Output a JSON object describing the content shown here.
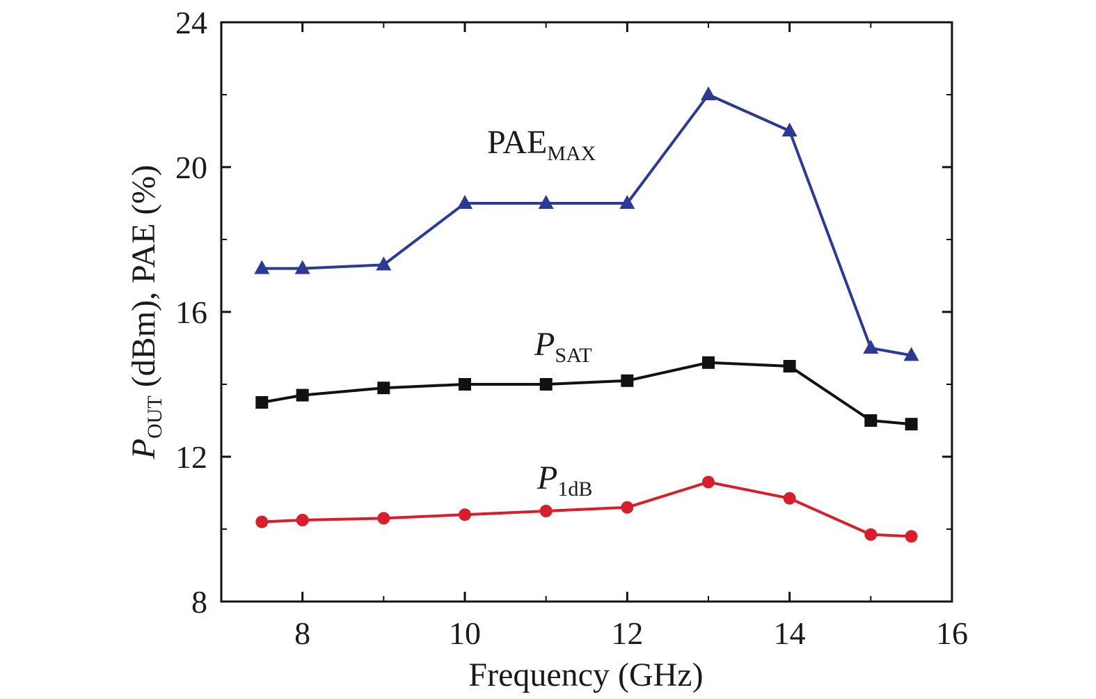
{
  "chart_data": {
    "type": "line",
    "xlabel": "Frequency (GHz)",
    "ylabel": {
      "main": "P",
      "sub": "OUT",
      "rest": " (dBm), PAE (%)"
    },
    "xlim": [
      7,
      16
    ],
    "ylim": [
      8,
      24
    ],
    "xticks": [
      "8",
      "10",
      "12",
      "14",
      "16"
    ],
    "yticks": [
      "8",
      "12",
      "16",
      "20",
      "24"
    ],
    "grid": false,
    "legend": "none",
    "series": [
      {
        "label": {
          "main": "PAE",
          "sub": "MAX",
          "italic": false
        },
        "color": "#2b3a94",
        "marker": "triangle",
        "x": [
          7.5,
          8,
          9,
          10,
          11,
          12,
          13,
          14,
          15,
          15.5
        ],
        "y": [
          17.2,
          17.2,
          17.3,
          19.0,
          19.0,
          19.0,
          22.0,
          21.0,
          15.0,
          14.8
        ]
      },
      {
        "label": {
          "main": "P",
          "sub": "SAT",
          "italic": true
        },
        "color": "#111111",
        "marker": "square",
        "x": [
          7.5,
          8,
          9,
          10,
          11,
          12,
          13,
          14,
          15,
          15.5
        ],
        "y": [
          13.5,
          13.7,
          13.9,
          14.0,
          14.0,
          14.1,
          14.6,
          14.5,
          13.0,
          12.9
        ]
      },
      {
        "label": {
          "main": "P",
          "sub": "1dB",
          "italic": true
        },
        "color": "#d81e2c",
        "marker": "circle",
        "x": [
          7.5,
          8,
          9,
          10,
          11,
          12,
          13,
          14,
          15,
          15.5
        ],
        "y": [
          10.2,
          10.25,
          10.3,
          10.4,
          10.5,
          10.6,
          11.3,
          10.85,
          9.85,
          9.8
        ]
      }
    ]
  }
}
